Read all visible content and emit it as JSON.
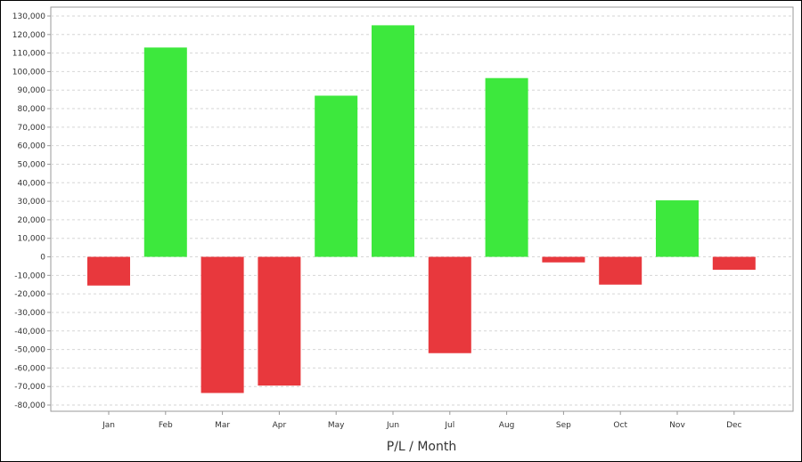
{
  "chart_data": {
    "type": "bar",
    "title": "",
    "xlabel": "P/L / Month",
    "ylabel": "",
    "categories": [
      "Jan",
      "Feb",
      "Mar",
      "Apr",
      "May",
      "Jun",
      "Jul",
      "Aug",
      "Sep",
      "Oct",
      "Nov",
      "Dec"
    ],
    "values": [
      -15500,
      113000,
      -73500,
      -69500,
      87000,
      125000,
      -52000,
      96500,
      -3000,
      -15000,
      30500,
      -7000
    ],
    "ylim": [
      -80000,
      130000
    ],
    "yticks": [
      "130,000",
      "120,000",
      "110,000",
      "100,000",
      "90,000",
      "80,000",
      "70,000",
      "60,000",
      "50,000",
      "40,000",
      "30,000",
      "20,000",
      "10,000",
      "0",
      "-10,000",
      "-20,000",
      "-30,000",
      "-40,000",
      "-50,000",
      "-60,000",
      "-70,000",
      "-80,000"
    ],
    "grid": true,
    "colors": {
      "positive": "#3de83d",
      "negative": "#e8383d",
      "grid": "#d6d6d6",
      "axis": "#999999"
    }
  }
}
